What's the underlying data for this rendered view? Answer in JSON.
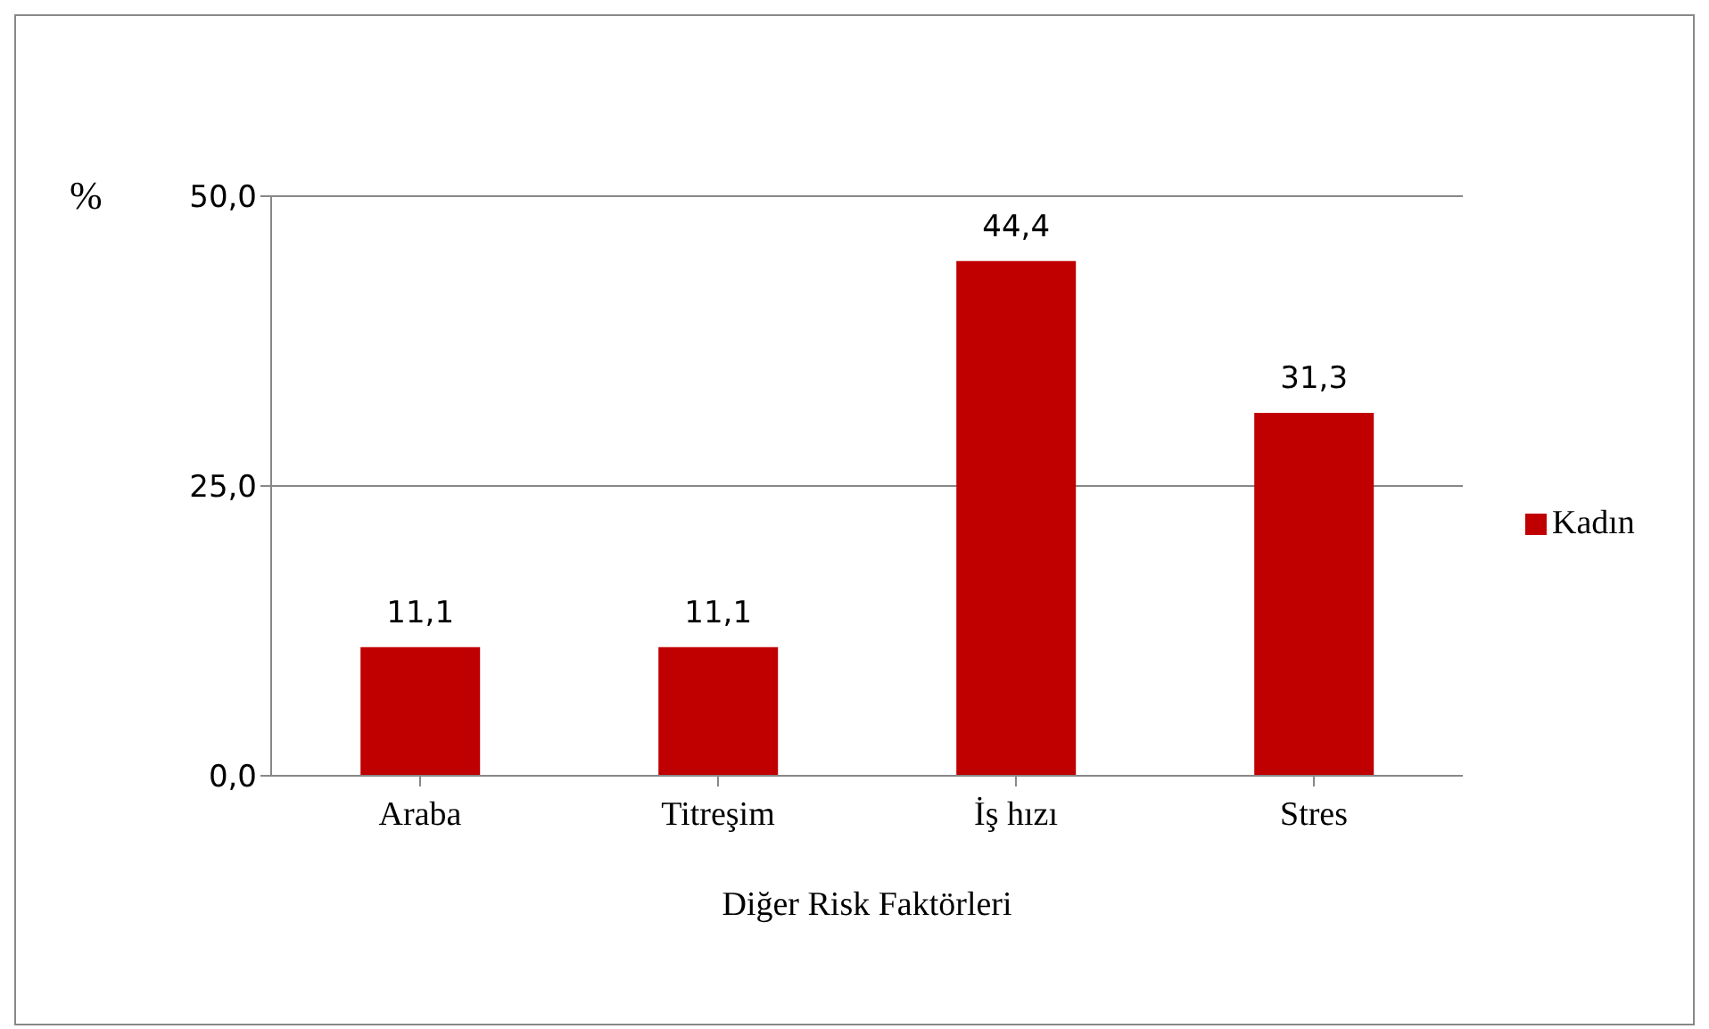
{
  "chart_data": {
    "type": "bar",
    "xlabel": "Diğer Risk Faktörleri",
    "ylabel": "%",
    "categories": [
      "Araba",
      "Titreşim",
      "İş hızı",
      "Stres"
    ],
    "series": [
      {
        "name": "Kadın",
        "color": "#c00000",
        "values": [
          11.1,
          11.1,
          44.4,
          31.3
        ],
        "value_labels": [
          "11,1",
          "11,1",
          "44,4",
          "31,3"
        ]
      }
    ],
    "ylim": [
      0,
      50
    ],
    "yticks": [
      {
        "value": 0,
        "label": "0,0"
      },
      {
        "value": 25,
        "label": "25,0"
      },
      {
        "value": 50,
        "label": "50,0"
      }
    ],
    "grid": "y",
    "legend": "right"
  }
}
